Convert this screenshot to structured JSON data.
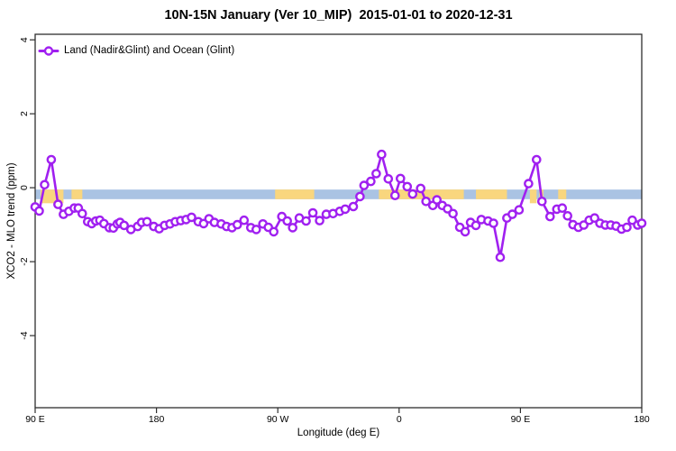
{
  "title": "10N-15N January (Ver 10_MIP)  2015-01-01 to 2020-12-31",
  "legend": {
    "label": "Land (Nadir&Glint) and Ocean (Glint)",
    "marker": "open-circle-on-line"
  },
  "colors": {
    "series_purple": "#A020F0",
    "band_blue": "#AAC3E3",
    "band_orange": "#F9D67E",
    "axis": "#2e2e2e",
    "text": "#000000"
  },
  "chart_data": {
    "type": "line",
    "title": "10N-15N January (Ver 10_MIP)  2015-01-01 to 2020-12-31",
    "xlabel": "Longitude (deg E)",
    "ylabel": "XCO2 - MLO trend (ppm)",
    "x_axis": {
      "note": "longitude unwrapped: 90E -> 180 -> 90W -> 0 -> 90E -> 180",
      "range": [
        90,
        540
      ],
      "ticks": [
        {
          "pos": 90,
          "label": "90 E"
        },
        {
          "pos": 180,
          "label": "180"
        },
        {
          "pos": 270,
          "label": "90 W"
        },
        {
          "pos": 360,
          "label": "0"
        },
        {
          "pos": 450,
          "label": "90 E"
        },
        {
          "pos": 540,
          "label": "180"
        }
      ]
    },
    "y_axis": {
      "range": [
        -5.95,
        4.15
      ],
      "ticks": [
        {
          "pos": -4,
          "label": "-4"
        },
        {
          "pos": -2,
          "label": "-2"
        },
        {
          "pos": 0,
          "label": "0"
        },
        {
          "pos": 2,
          "label": "2"
        },
        {
          "pos": 4,
          "label": "4"
        }
      ]
    },
    "grid": false,
    "legend_position": "top-left-inside",
    "reference_band": {
      "y_from": -0.31,
      "y_to": -0.05,
      "x_from": 90,
      "x_to": 540,
      "color_key": "band_blue"
    },
    "highlight_segments": {
      "color_key": "band_orange",
      "deep_bottom": -0.42,
      "segments": [
        {
          "from": 94,
          "to": 111,
          "deep": true
        },
        {
          "from": 117,
          "to": 125,
          "deep": false
        },
        {
          "from": 268,
          "to": 297,
          "deep": false
        },
        {
          "from": 345,
          "to": 408,
          "deep": false
        },
        {
          "from": 417,
          "to": 440,
          "deep": false
        },
        {
          "from": 457,
          "to": 462,
          "deep": true
        },
        {
          "from": 464,
          "to": 467,
          "deep": true
        },
        {
          "from": 478,
          "to": 484,
          "deep": false
        }
      ]
    },
    "series": [
      {
        "name": "Land (Nadir&Glint) and Ocean (Glint)",
        "color_key": "series_purple",
        "marker": "open-circle",
        "points": [
          [
            90,
            -0.52
          ],
          [
            93,
            -0.63
          ],
          [
            97,
            0.08
          ],
          [
            102,
            0.76
          ],
          [
            107,
            -0.45
          ],
          [
            111,
            -0.72
          ],
          [
            115,
            -0.64
          ],
          [
            119,
            -0.55
          ],
          [
            122,
            -0.55
          ],
          [
            125,
            -0.7
          ],
          [
            129,
            -0.92
          ],
          [
            132,
            -0.97
          ],
          [
            135,
            -0.9
          ],
          [
            138,
            -0.88
          ],
          [
            141,
            -0.97
          ],
          [
            145,
            -1.08
          ],
          [
            148,
            -1.09
          ],
          [
            151,
            -0.98
          ],
          [
            153,
            -0.94
          ],
          [
            156,
            -1.02
          ],
          [
            161,
            -1.13
          ],
          [
            166,
            -1.05
          ],
          [
            169,
            -0.94
          ],
          [
            173,
            -0.92
          ],
          [
            178,
            -1.05
          ],
          [
            182,
            -1.11
          ],
          [
            186,
            -1.02
          ],
          [
            190,
            -0.98
          ],
          [
            194,
            -0.92
          ],
          [
            198,
            -0.89
          ],
          [
            202,
            -0.86
          ],
          [
            206,
            -0.8
          ],
          [
            211,
            -0.92
          ],
          [
            215,
            -0.97
          ],
          [
            219,
            -0.84
          ],
          [
            223,
            -0.94
          ],
          [
            228,
            -0.98
          ],
          [
            232,
            -1.05
          ],
          [
            236,
            -1.08
          ],
          [
            240,
            -1.0
          ],
          [
            245,
            -0.88
          ],
          [
            250,
            -1.08
          ],
          [
            254,
            -1.13
          ],
          [
            259,
            -0.98
          ],
          [
            263,
            -1.07
          ],
          [
            267,
            -1.19
          ],
          [
            273,
            -0.78
          ],
          [
            277,
            -0.9
          ],
          [
            281,
            -1.08
          ],
          [
            286,
            -0.82
          ],
          [
            291,
            -0.9
          ],
          [
            296,
            -0.68
          ],
          [
            301,
            -0.89
          ],
          [
            306,
            -0.72
          ],
          [
            311,
            -0.7
          ],
          [
            316,
            -0.64
          ],
          [
            320,
            -0.58
          ],
          [
            326,
            -0.51
          ],
          [
            331,
            -0.24
          ],
          [
            334,
            0.06
          ],
          [
            339,
            0.17
          ],
          [
            343,
            0.38
          ],
          [
            347,
            0.9
          ],
          [
            352,
            0.24
          ],
          [
            357,
            -0.21
          ],
          [
            361,
            0.25
          ],
          [
            366,
            0.03
          ],
          [
            370,
            -0.17
          ],
          [
            376,
            -0.02
          ],
          [
            380,
            -0.37
          ],
          [
            385,
            -0.48
          ],
          [
            388,
            -0.33
          ],
          [
            392,
            -0.48
          ],
          [
            396,
            -0.57
          ],
          [
            400,
            -0.7
          ],
          [
            405,
            -1.07
          ],
          [
            409,
            -1.19
          ],
          [
            413,
            -0.94
          ],
          [
            417,
            -1.02
          ],
          [
            421,
            -0.86
          ],
          [
            426,
            -0.9
          ],
          [
            430,
            -0.96
          ],
          [
            435,
            -1.88
          ],
          [
            440,
            -0.82
          ],
          [
            444,
            -0.72
          ],
          [
            449,
            -0.6
          ],
          [
            456,
            0.11
          ],
          [
            462,
            0.76
          ],
          [
            466,
            -0.37
          ],
          [
            472,
            -0.78
          ],
          [
            477,
            -0.58
          ],
          [
            481,
            -0.55
          ],
          [
            485,
            -0.76
          ],
          [
            489,
            -1.0
          ],
          [
            493,
            -1.07
          ],
          [
            497,
            -1.01
          ],
          [
            501,
            -0.88
          ],
          [
            505,
            -0.82
          ],
          [
            509,
            -0.96
          ],
          [
            513,
            -1.01
          ],
          [
            517,
            -1.01
          ],
          [
            521,
            -1.04
          ],
          [
            525,
            -1.12
          ],
          [
            529,
            -1.07
          ],
          [
            533,
            -0.88
          ],
          [
            537,
            -1.01
          ],
          [
            540,
            -0.96
          ]
        ]
      }
    ]
  }
}
